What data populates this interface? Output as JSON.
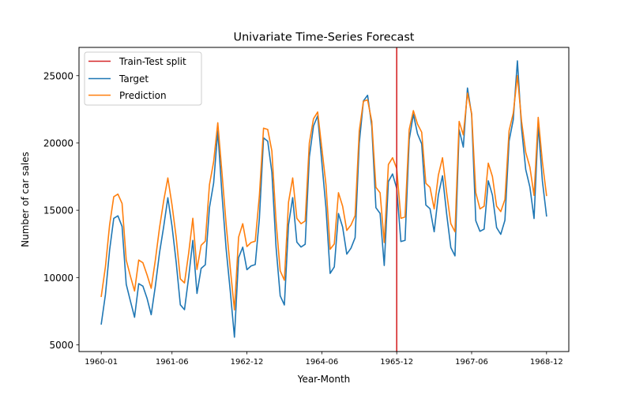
{
  "chart_data": {
    "type": "line",
    "title": "Univariate Time-Series Forecast",
    "xlabel": "Year-Month",
    "ylabel": "Number of car sales",
    "x": [
      "1960-01",
      "1960-02",
      "1960-03",
      "1960-04",
      "1960-05",
      "1960-06",
      "1960-07",
      "1960-08",
      "1960-09",
      "1960-10",
      "1960-11",
      "1960-12",
      "1961-01",
      "1961-02",
      "1961-03",
      "1961-04",
      "1961-05",
      "1961-06",
      "1961-07",
      "1961-08",
      "1961-09",
      "1961-10",
      "1961-11",
      "1961-12",
      "1962-01",
      "1962-02",
      "1962-03",
      "1962-04",
      "1962-05",
      "1962-06",
      "1962-07",
      "1962-08",
      "1962-09",
      "1962-10",
      "1962-11",
      "1962-12",
      "1963-01",
      "1963-02",
      "1963-03",
      "1963-04",
      "1963-05",
      "1963-06",
      "1963-07",
      "1963-08",
      "1963-09",
      "1963-10",
      "1963-11",
      "1963-12",
      "1964-01",
      "1964-02",
      "1964-03",
      "1964-04",
      "1964-05",
      "1964-06",
      "1964-07",
      "1964-08",
      "1964-09",
      "1964-10",
      "1964-11",
      "1964-12",
      "1965-01",
      "1965-02",
      "1965-03",
      "1965-04",
      "1965-05",
      "1965-06",
      "1965-07",
      "1965-08",
      "1965-09",
      "1965-10",
      "1965-11",
      "1965-12",
      "1966-01",
      "1966-02",
      "1966-03",
      "1966-04",
      "1966-05",
      "1966-06",
      "1966-07",
      "1966-08",
      "1966-09",
      "1966-10",
      "1966-11",
      "1966-12",
      "1967-01",
      "1967-02",
      "1967-03",
      "1967-04",
      "1967-05",
      "1967-06",
      "1967-07",
      "1967-08",
      "1967-09",
      "1967-10",
      "1967-11",
      "1967-12",
      "1968-01",
      "1968-02",
      "1968-03",
      "1968-04",
      "1968-05",
      "1968-06",
      "1968-07",
      "1968-08",
      "1968-09",
      "1968-10",
      "1968-11",
      "1968-12"
    ],
    "xticks": [
      "1960-01",
      "1961-06",
      "1962-12",
      "1964-06",
      "1965-12",
      "1967-06",
      "1968-12"
    ],
    "yticks": [
      5000,
      10000,
      15000,
      20000,
      25000
    ],
    "ylim": [
      4500,
      27100
    ],
    "grid": false,
    "legend_position": "top-left",
    "split_at": "1965-12",
    "split_color": "#d62728",
    "series": [
      {
        "name": "Target",
        "color": "#1f77b4",
        "values": [
          6550,
          8728,
          12026,
          14395,
          14587,
          13791,
          9498,
          8251,
          7049,
          9545,
          9364,
          8456,
          7237,
          9374,
          11837,
          13784,
          15926,
          13821,
          11143,
          7975,
          7610,
          10015,
          12759,
          8816,
          10677,
          10947,
          15200,
          17010,
          20900,
          16205,
          12143,
          8997,
          5568,
          11474,
          12256,
          10583,
          10862,
          10965,
          14405,
          20379,
          20128,
          17816,
          12268,
          8642,
          7962,
          13932,
          15936,
          12628,
          12267,
          12470,
          18944,
          21259,
          22015,
          18581,
          15175,
          10306,
          10792,
          14752,
          13754,
          11738,
          12181,
          12965,
          19990,
          23125,
          23541,
          21247,
          15189,
          14767,
          10895,
          17130,
          17697,
          16611,
          12674,
          12760,
          20249,
          22135,
          20677,
          19933,
          15388,
          15113,
          13401,
          16135,
          17562,
          14720,
          12225,
          11608,
          20985,
          19692,
          24081,
          22114,
          14220,
          13434,
          13598,
          17187,
          16119,
          13713,
          13210,
          14251,
          20139,
          21725,
          26099,
          21084,
          18024,
          16722,
          14385,
          21342,
          17180,
          14577
        ]
      },
      {
        "name": "Prediction",
        "color": "#ff7f0e",
        "values": [
          8600,
          10800,
          13900,
          16000,
          16200,
          15500,
          11300,
          10100,
          9000,
          11300,
          11100,
          10200,
          9200,
          11300,
          13700,
          15700,
          17400,
          15400,
          13000,
          9900,
          9600,
          11800,
          14400,
          10600,
          12400,
          12700,
          16900,
          18600,
          21500,
          17800,
          14000,
          10700,
          7600,
          13000,
          14000,
          12300,
          12600,
          12700,
          16100,
          21100,
          21000,
          19400,
          14200,
          10500,
          9800,
          15600,
          17400,
          14400,
          14000,
          14200,
          20000,
          21800,
          22300,
          19600,
          16900,
          12100,
          12500,
          16300,
          15300,
          13500,
          13900,
          14600,
          20900,
          23100,
          23200,
          21600,
          16700,
          16300,
          12600,
          18400,
          18900,
          18100,
          14400,
          14500,
          21000,
          22400,
          21400,
          20800,
          17000,
          16700,
          15100,
          17600,
          18900,
          16300,
          14000,
          13400,
          21600,
          20600,
          23700,
          22200,
          16300,
          15100,
          15300,
          18500,
          17500,
          15300,
          14900,
          15800,
          20900,
          22200,
          25000,
          21600,
          19300,
          18200,
          16100,
          21900,
          18600,
          16100
        ]
      }
    ]
  },
  "legend": {
    "items": [
      {
        "label": "Train-Test split",
        "color": "#d62728"
      },
      {
        "label": "Target",
        "color": "#1f77b4"
      },
      {
        "label": "Prediction",
        "color": "#ff7f0e"
      }
    ]
  }
}
